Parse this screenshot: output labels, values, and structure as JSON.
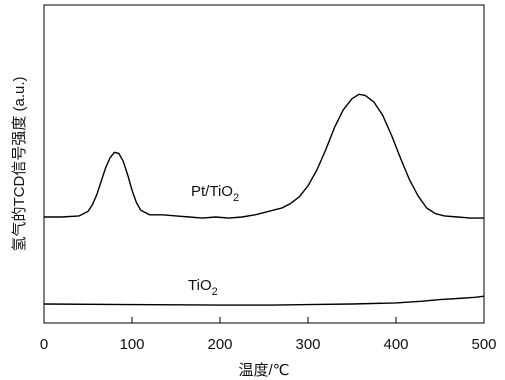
{
  "chart_data": {
    "type": "line",
    "xlabel": "温度/℃",
    "ylabel": "氢气的TCD信号强度 (a.u.)",
    "xlim": [
      0,
      500
    ],
    "x_ticks": [
      "0",
      "100",
      "200",
      "300",
      "400",
      "500"
    ],
    "grid": false,
    "legend": "none",
    "series": [
      {
        "name": "Pt/TiO2",
        "name_main": "Pt/TiO",
        "name_sub": "2",
        "color": "#000000",
        "points": [
          [
            0,
            0.0
          ],
          [
            20,
            0.0
          ],
          [
            40,
            0.01
          ],
          [
            50,
            0.05
          ],
          [
            55,
            0.11
          ],
          [
            60,
            0.2
          ],
          [
            65,
            0.32
          ],
          [
            70,
            0.44
          ],
          [
            75,
            0.53
          ],
          [
            80,
            0.58
          ],
          [
            85,
            0.57
          ],
          [
            90,
            0.5
          ],
          [
            95,
            0.38
          ],
          [
            100,
            0.24
          ],
          [
            105,
            0.13
          ],
          [
            110,
            0.06
          ],
          [
            120,
            0.02
          ],
          [
            135,
            0.02
          ],
          [
            150,
            0.01
          ],
          [
            165,
            0.0
          ],
          [
            180,
            -0.01
          ],
          [
            195,
            0.0
          ],
          [
            210,
            -0.01
          ],
          [
            225,
            0.0
          ],
          [
            240,
            0.02
          ],
          [
            255,
            0.05
          ],
          [
            270,
            0.08
          ],
          [
            280,
            0.12
          ],
          [
            290,
            0.18
          ],
          [
            300,
            0.28
          ],
          [
            310,
            0.42
          ],
          [
            320,
            0.6
          ],
          [
            330,
            0.8
          ],
          [
            340,
            0.96
          ],
          [
            350,
            1.06
          ],
          [
            358,
            1.1
          ],
          [
            365,
            1.09
          ],
          [
            375,
            1.03
          ],
          [
            385,
            0.91
          ],
          [
            395,
            0.73
          ],
          [
            405,
            0.53
          ],
          [
            415,
            0.34
          ],
          [
            425,
            0.19
          ],
          [
            435,
            0.08
          ],
          [
            445,
            0.03
          ],
          [
            455,
            0.01
          ],
          [
            470,
            0.0
          ],
          [
            485,
            -0.01
          ],
          [
            500,
            -0.01
          ]
        ]
      },
      {
        "name": "TiO2",
        "name_main": "TiO",
        "name_sub": "2",
        "color": "#000000",
        "points": [
          [
            0,
            -0.78
          ],
          [
            100,
            -0.785
          ],
          [
            200,
            -0.79
          ],
          [
            260,
            -0.79
          ],
          [
            300,
            -0.785
          ],
          [
            350,
            -0.78
          ],
          [
            400,
            -0.77
          ],
          [
            430,
            -0.755
          ],
          [
            450,
            -0.74
          ],
          [
            470,
            -0.73
          ],
          [
            490,
            -0.72
          ],
          [
            500,
            -0.71
          ]
        ]
      }
    ],
    "ylim": [
      -0.95,
      1.9
    ]
  }
}
